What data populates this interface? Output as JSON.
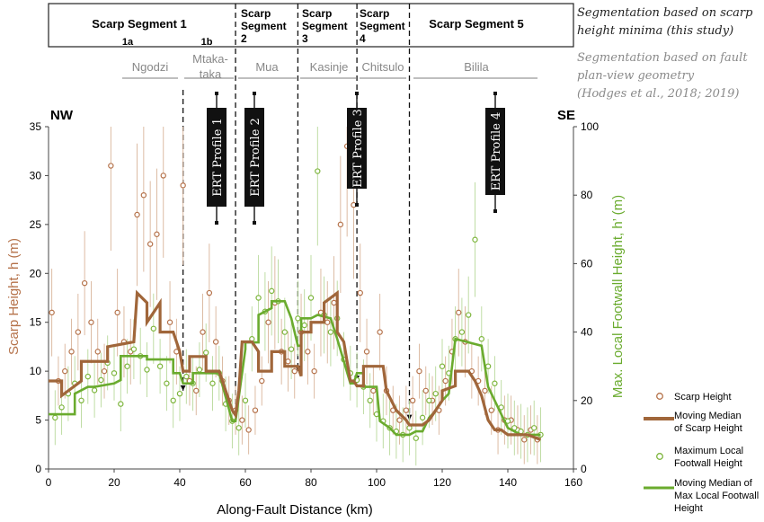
{
  "segments_header": {
    "labels": [
      {
        "line1": "Scarp Segment 1",
        "line2": ""
      },
      {
        "line1": "Scarp",
        "line2": "Segment"
      },
      {
        "line1": "Scarp",
        "line2": "Segment"
      },
      {
        "line1": "Scarp",
        "line2": "Segment"
      },
      {
        "line1": "Scarp Segment 5",
        "line2": ""
      }
    ],
    "sub_labels": [
      "1a",
      "1b",
      "2",
      "3",
      "4"
    ],
    "note_scarp": "Segmentation based on scarp height minima (this study)",
    "note_fault_1": "Segmentation based on fault",
    "note_fault_2": "plan-view geometry",
    "note_fault_3": "(Hodges et al., 2018; 2019)"
  },
  "fault_segments": [
    "Ngodzi",
    "Mtaka-",
    "taka",
    "Mua",
    "Kasinje",
    "Chitsulo",
    "Bilila"
  ],
  "ert_profiles": [
    "ERT Profile 1",
    "ERT Profile 2",
    "ERT Profile 3",
    "ERT Profile 4"
  ],
  "direction": {
    "left": "NW",
    "right": "SE"
  },
  "legend": {
    "scarp_height": "Scarp Height",
    "median_scarp_1": "Moving Median",
    "median_scarp_2": "of Scarp Height",
    "footwall_1": "Maximum Local",
    "footwall_2": "Footwall Height",
    "median_footwall_1": "Moving Median of",
    "median_footwall_2": "Max Local Footwall",
    "median_footwall_3": "Height"
  },
  "colors": {
    "scarp": "#b5724a",
    "footwall": "#7db53c",
    "median_scarp": "#a0663a",
    "median_footwall": "#6aab2e"
  },
  "chart_data": {
    "type": "scatter",
    "xlabel": "Along-Fault Distance (km)",
    "ylabel_left": "Scarp Height, h (m)",
    "ylabel_right": "Max. Local Footwall Height, h’ (m)",
    "xlim": [
      0,
      160
    ],
    "ylim_left": [
      0,
      35
    ],
    "ylim_right": [
      0,
      100
    ],
    "x_ticks": [
      0,
      20,
      40,
      60,
      80,
      100,
      120,
      140,
      160
    ],
    "y_ticks_left": [
      0,
      5,
      10,
      15,
      20,
      25,
      30,
      35
    ],
    "y_ticks_right": [
      0,
      20,
      40,
      60,
      80,
      100
    ],
    "segment_boundaries_km": [
      57,
      76,
      94,
      110
    ],
    "subsegment_boundary_km": 41,
    "series": [
      {
        "name": "Moving Median of Scarp Height",
        "axis": "left",
        "x": [
          0,
          4,
          4,
          10,
          10,
          18,
          18,
          26,
          27,
          30,
          30,
          34,
          34,
          38,
          40,
          41,
          43,
          43,
          48,
          48,
          52,
          54,
          56,
          57,
          58,
          59,
          62,
          64,
          64,
          68,
          68,
          72,
          72,
          76,
          77,
          77,
          80,
          80,
          84,
          84,
          88,
          88,
          90,
          92,
          93,
          94,
          96,
          96,
          102,
          103,
          106,
          109,
          110,
          114,
          116,
          118,
          120,
          120,
          124,
          124,
          128,
          130,
          132,
          134,
          136,
          138,
          140,
          146,
          150
        ],
        "y": [
          9,
          9,
          7.5,
          9,
          11,
          11,
          12.5,
          13,
          18,
          17,
          15,
          17,
          14,
          14,
          12,
          10,
          10,
          11.5,
          11.5,
          10,
          10,
          8,
          6,
          5.5,
          8,
          13,
          13,
          12,
          10,
          10,
          12,
          12,
          10.5,
          10.5,
          9.5,
          14,
          14,
          15,
          15,
          17,
          18,
          14,
          13,
          9,
          9,
          8.5,
          8.5,
          10.5,
          10.5,
          8,
          6,
          5,
          4.5,
          4.5,
          5,
          6,
          7,
          8,
          8.5,
          10,
          10,
          9,
          7.5,
          5,
          4,
          4,
          3.5,
          3.5,
          3
        ]
      },
      {
        "name": "Moving Median of Max Local Footwall Height",
        "axis": "right",
        "x": [
          0,
          8,
          8,
          12,
          14,
          20,
          22,
          22,
          30,
          30,
          38,
          38,
          40,
          41,
          44,
          44,
          52,
          56,
          57,
          60,
          60,
          64,
          64,
          68,
          68,
          72,
          74,
          76,
          77,
          77,
          80,
          82,
          86,
          88,
          92,
          93,
          94,
          96,
          96,
          100,
          101,
          104,
          106,
          110,
          112,
          114,
          116,
          118,
          120,
          122,
          124,
          124,
          132,
          134,
          136,
          138,
          140,
          144,
          150
        ],
        "y": [
          16,
          16,
          22,
          24,
          24,
          25,
          26,
          33,
          33,
          32,
          32,
          28,
          28,
          25,
          25,
          28,
          28,
          14,
          14,
          35,
          37,
          37,
          45,
          47,
          49,
          49,
          44,
          36,
          36,
          44,
          44,
          45,
          44,
          38,
          25,
          25,
          28,
          28,
          24,
          24,
          14,
          12,
          10,
          10,
          11,
          11,
          15,
          17,
          20,
          22,
          38,
          38,
          36,
          24,
          20,
          16,
          12,
          10,
          10
        ]
      },
      {
        "name": "Scarp Height",
        "axis": "left",
        "x": [
          1,
          3,
          5,
          7,
          9,
          11,
          13,
          15,
          17,
          19,
          21,
          23,
          25,
          27,
          29,
          31,
          33,
          35,
          37,
          39,
          41,
          43,
          45,
          47,
          49,
          51,
          53,
          55,
          57,
          59,
          61,
          63,
          65,
          67,
          69,
          71,
          73,
          75,
          77,
          79,
          81,
          83,
          85,
          87,
          89,
          91,
          93,
          95,
          97,
          99,
          101,
          103,
          105,
          107,
          109,
          111,
          113,
          115,
          117,
          119,
          121,
          123,
          125,
          127,
          129,
          131,
          133,
          135,
          137,
          139,
          141,
          143,
          145,
          147,
          149
        ],
        "y": [
          16,
          9,
          10,
          12,
          14,
          19,
          15,
          12,
          10,
          31,
          16,
          13,
          12,
          26,
          28,
          23,
          24,
          30,
          15,
          12,
          29,
          9,
          8,
          14,
          18,
          13,
          9,
          7,
          6,
          5,
          4,
          6,
          9,
          15,
          17,
          12,
          11,
          10,
          14,
          12,
          10,
          16,
          15,
          17,
          25,
          33,
          27,
          18,
          12,
          8,
          14,
          8,
          6,
          5,
          6,
          7,
          10,
          8,
          7,
          6,
          9,
          12,
          16,
          13,
          10,
          9,
          8,
          6,
          4,
          5,
          5,
          4,
          3,
          4,
          3
        ]
      },
      {
        "name": "Maximum Local Footwall Height",
        "axis": "right",
        "x": [
          2,
          4,
          6,
          8,
          10,
          12,
          14,
          16,
          18,
          20,
          22,
          24,
          26,
          28,
          30,
          32,
          34,
          36,
          38,
          40,
          42,
          44,
          46,
          48,
          50,
          52,
          54,
          56,
          58,
          60,
          62,
          64,
          66,
          68,
          70,
          72,
          74,
          76,
          78,
          80,
          82,
          84,
          86,
          88,
          90,
          92,
          94,
          96,
          98,
          100,
          102,
          104,
          106,
          108,
          110,
          112,
          114,
          116,
          118,
          120,
          122,
          124,
          126,
          128,
          130,
          132,
          134,
          136,
          138,
          140,
          142,
          144,
          146,
          148,
          150
        ],
        "y": [
          15,
          18,
          22,
          25,
          20,
          27,
          23,
          26,
          31,
          28,
          19,
          30,
          35,
          33,
          29,
          41,
          30,
          25,
          20,
          22,
          27,
          25,
          29,
          34,
          25,
          28,
          19,
          14,
          12,
          20,
          38,
          50,
          46,
          52,
          49,
          40,
          35,
          44,
          42,
          50,
          87,
          45,
          40,
          44,
          32,
          28,
          26,
          24,
          20,
          16,
          14,
          12,
          11,
          10,
          12,
          9,
          15,
          20,
          22,
          30,
          28,
          38,
          40,
          45,
          67,
          38,
          30,
          25,
          18,
          14,
          12,
          11,
          10,
          12,
          10
        ]
      }
    ]
  }
}
